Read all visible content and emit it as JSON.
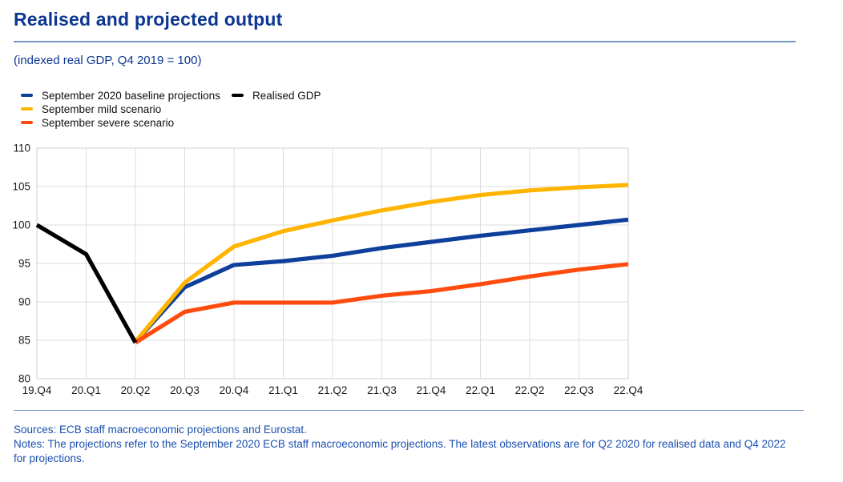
{
  "header": {
    "title": "Realised and projected output",
    "subtitle": "(indexed real GDP, Q4 2019 = 100)"
  },
  "legend": {
    "items": [
      {
        "label": "September 2020 baseline projections",
        "color": "#0e3f9b"
      },
      {
        "label": "Realised GDP",
        "color": "#000000"
      },
      {
        "label": "September mild scenario",
        "color": "#ffb400"
      },
      {
        "label": "September severe scenario",
        "color": "#ff4b0d"
      }
    ]
  },
  "chart_data": {
    "type": "line",
    "title": "Realised and projected output",
    "subtitle": "(indexed real GDP, Q4 2019 = 100)",
    "categories": [
      "19.Q4",
      "20.Q1",
      "20.Q2",
      "20.Q3",
      "20.Q4",
      "21.Q1",
      "21.Q2",
      "21.Q3",
      "21.Q4",
      "22.Q1",
      "22.Q2",
      "22.Q3",
      "22.Q4"
    ],
    "ylim": [
      80,
      110
    ],
    "ytick_step": 5,
    "grid": true,
    "legend_position": "top-left",
    "series": [
      {
        "name": "September 2020 baseline projections",
        "color": "#0e3f9b",
        "start_index": 2,
        "values": [
          84.8,
          91.9,
          94.8,
          95.3,
          96.0,
          97.0,
          97.8,
          98.6,
          99.3,
          100.0,
          100.7
        ]
      },
      {
        "name": "September mild scenario",
        "color": "#ffb400",
        "start_index": 2,
        "values": [
          84.8,
          92.5,
          97.2,
          99.2,
          100.6,
          101.9,
          103.0,
          103.9,
          104.5,
          104.9,
          105.2
        ]
      },
      {
        "name": "September severe scenario",
        "color": "#ff4b0d",
        "start_index": 2,
        "values": [
          84.7,
          88.7,
          89.9,
          89.9,
          89.9,
          90.8,
          91.4,
          92.3,
          93.3,
          94.2,
          94.9
        ]
      },
      {
        "name": "Realised GDP",
        "color": "#000000",
        "start_index": 0,
        "values": [
          100,
          96.2,
          84.7
        ]
      }
    ]
  },
  "footer": {
    "sources": "Sources: ECB staff macroeconomic projections and Eurostat.",
    "notes": "Notes: The projections refer to the September 2020 ECB staff macroeconomic projections. The latest observations are for Q2 2020 for realised data and Q4 2022 for projections."
  },
  "colors": {
    "title_text": "#0d3692",
    "subtitle_text": "#0d3692",
    "rule": "#7595cb",
    "footer_text": "#1a4fae",
    "grid": "#dcdcdc",
    "plot_border": "#cfcfcf",
    "axis_text": "#1a1a1a"
  }
}
